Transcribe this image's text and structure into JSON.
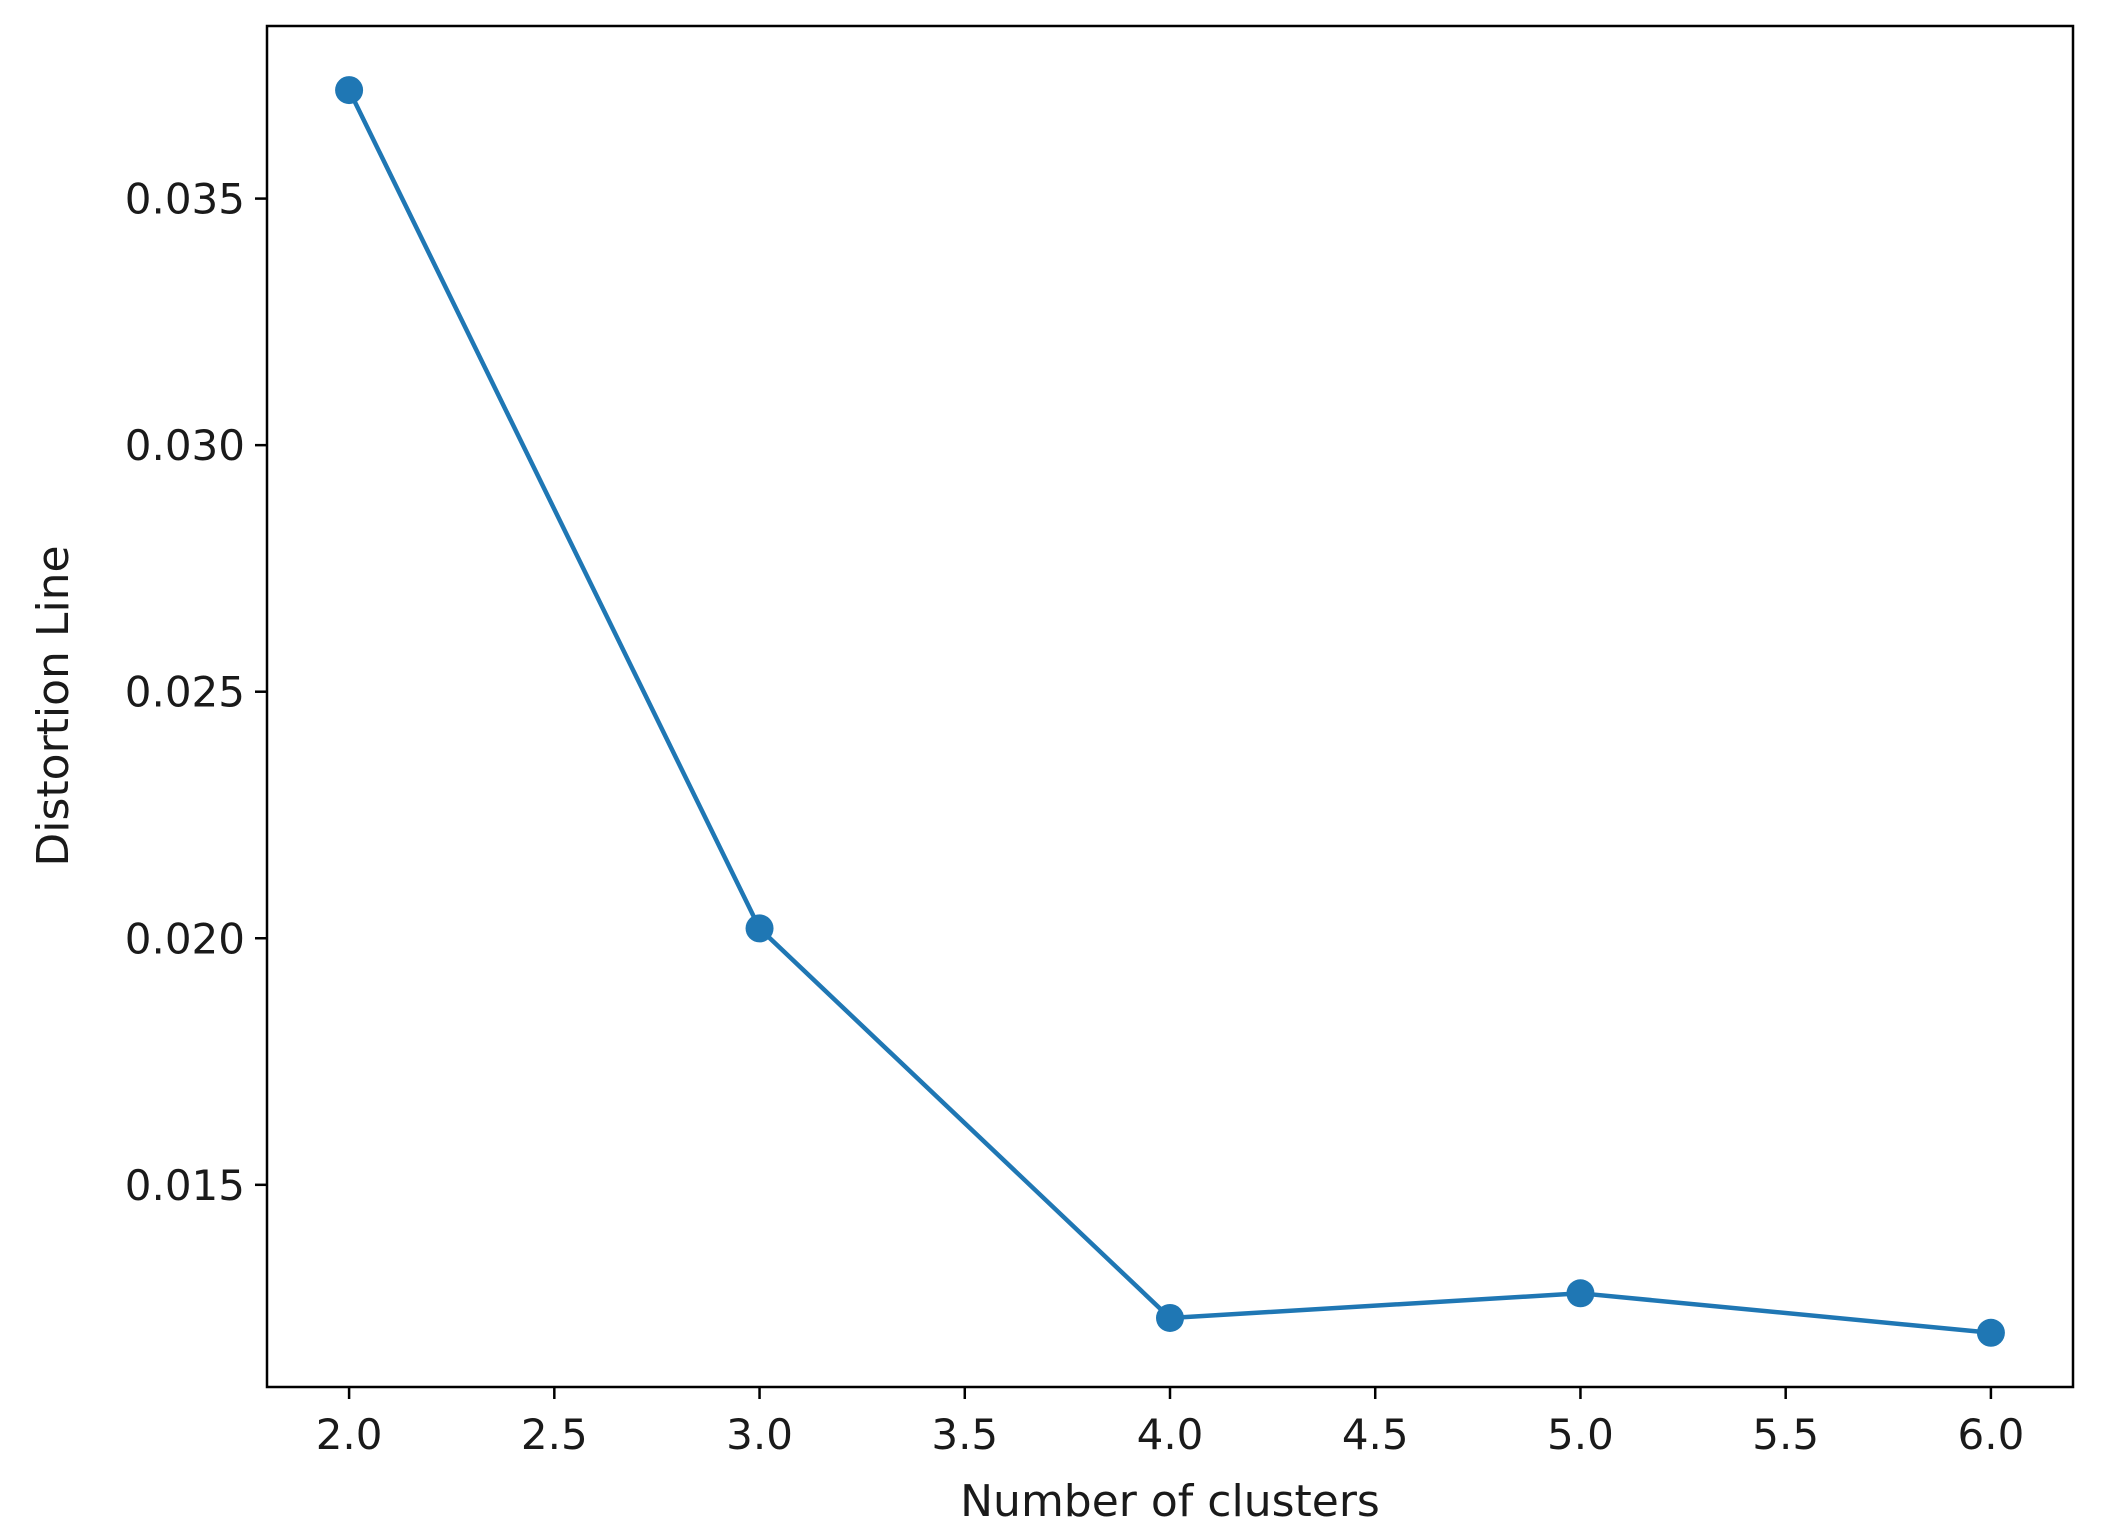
{
  "chart_data": {
    "type": "line",
    "title": "",
    "xlabel": "Number of clusters",
    "ylabel": "Distortion Line",
    "x": [
      2.0,
      3.0,
      4.0,
      5.0,
      6.0
    ],
    "series": [
      {
        "values": [
          0.0372,
          0.0202,
          0.0123,
          0.0128,
          0.012
        ],
        "color": "#1f77b4",
        "marker": "circle"
      }
    ],
    "xlim": [
      1.8,
      6.2
    ],
    "ylim": [
      0.0109,
      0.0385
    ],
    "xticks": [
      2.0,
      2.5,
      3.0,
      3.5,
      4.0,
      4.5,
      5.0,
      5.5,
      6.0
    ],
    "xtick_labels": [
      "2.0",
      "2.5",
      "3.0",
      "3.5",
      "4.0",
      "4.5",
      "5.0",
      "5.5",
      "6.0"
    ],
    "yticks": [
      0.015,
      0.02,
      0.025,
      0.03,
      0.035
    ],
    "ytick_labels": [
      "0.015",
      "0.020",
      "0.025",
      "0.030",
      "0.035"
    ],
    "grid": false,
    "legend": "none"
  }
}
